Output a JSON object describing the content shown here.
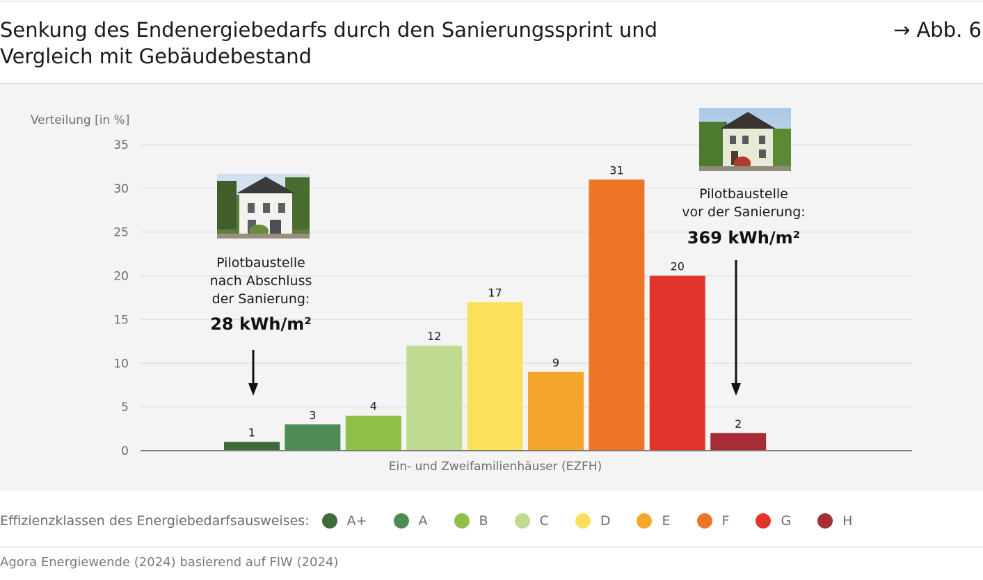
{
  "header": {
    "title_line1": "Senkung des Endenergiebedarfs durch den Sanierungssprint und",
    "title_line2": "Vergleich mit Gebäudebestand",
    "figure_ref": "→ Abb. 6"
  },
  "chart_data": {
    "type": "bar",
    "ylabel": "Verteilung [in %]",
    "xlabel": "Ein- und Zweifamilienhäuser (EZFH)",
    "ylim": [
      0,
      35
    ],
    "yticks": [
      0,
      5,
      10,
      15,
      20,
      25,
      30,
      35
    ],
    "grid": true,
    "categories": [
      "A+",
      "A",
      "B",
      "C",
      "D",
      "E",
      "F",
      "G",
      "H"
    ],
    "values": [
      1,
      3,
      4,
      12,
      17,
      9,
      31,
      20,
      2
    ],
    "colors": [
      "#3e6b3c",
      "#4f8b57",
      "#8fc04a",
      "#bfdb8f",
      "#fbe05c",
      "#f5a62d",
      "#ec7626",
      "#e3342b",
      "#a72d36"
    ],
    "annotations": [
      {
        "lines": [
          "Pilotbaustelle",
          "nach Abschluss",
          "der Sanierung:"
        ],
        "value_text": "28 kWh/m²",
        "arrow_points_to": "A+",
        "photo": "renovated-house-photo"
      },
      {
        "lines": [
          "Pilotbaustelle",
          "vor der Sanierung:"
        ],
        "value_text": "369 kWh/m²",
        "arrow_points_to": "H",
        "photo": "unrenovated-house-photo"
      }
    ]
  },
  "legend": {
    "title": "Effizienzklassen des Energiebedarfsausweises:",
    "items": [
      {
        "label": "A+",
        "color": "#3e6b3c"
      },
      {
        "label": "A",
        "color": "#4f8b57"
      },
      {
        "label": "B",
        "color": "#8fc04a"
      },
      {
        "label": "C",
        "color": "#bfdb8f"
      },
      {
        "label": "D",
        "color": "#fbe05c"
      },
      {
        "label": "E",
        "color": "#f5a62d"
      },
      {
        "label": "F",
        "color": "#ec7626"
      },
      {
        "label": "G",
        "color": "#e3342b"
      },
      {
        "label": "H",
        "color": "#a72d36"
      }
    ]
  },
  "footer": {
    "source": "Agora Energiewende (2024) basierend auf FIW (2024)"
  }
}
